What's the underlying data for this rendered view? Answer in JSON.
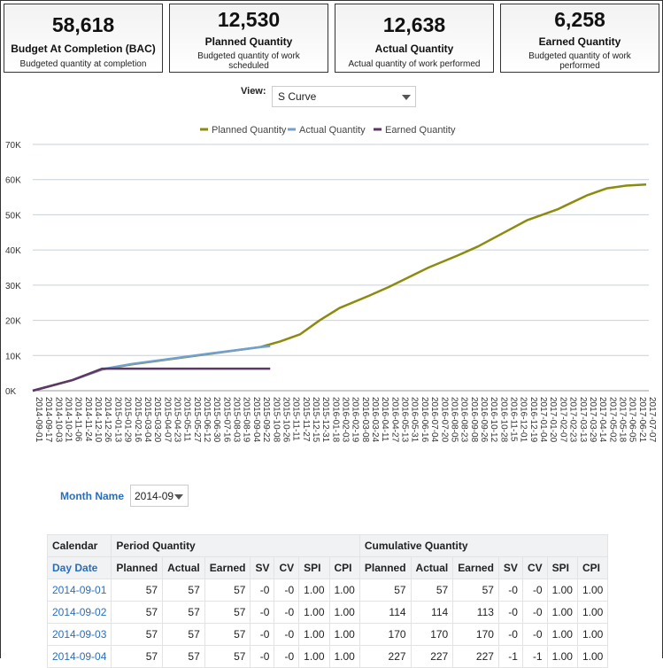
{
  "kpis": [
    {
      "value": "58,618",
      "label": "Budget At Completion (BAC)",
      "desc": "Budgeted quantity at completion"
    },
    {
      "value": "12,530",
      "label": "Planned Quantity",
      "desc": "Budgeted quantity of work scheduled"
    },
    {
      "value": "12,638",
      "label": "Actual Quantity",
      "desc": "Actual quantity of work performed"
    },
    {
      "value": "6,258",
      "label": "Earned Quantity",
      "desc": "Budgeted quantity of work performed"
    }
  ],
  "view": {
    "label": "View:",
    "value": "S Curve"
  },
  "chart_data": {
    "type": "line",
    "legend_position": "top",
    "grid": true,
    "ylim": [
      0,
      70000
    ],
    "y_ticks": [
      "0K",
      "10K",
      "20K",
      "30K",
      "40K",
      "50K",
      "60K",
      "70K"
    ],
    "x_labels": [
      "2014-09-01",
      "2014-09-17",
      "2014-10-03",
      "2014-10-21",
      "2014-11-06",
      "2014-11-24",
      "2014-12-10",
      "2014-12-26",
      "2015-01-13",
      "2015-01-29",
      "2015-02-16",
      "2015-03-04",
      "2015-03-20",
      "2015-04-07",
      "2015-04-23",
      "2015-05-11",
      "2015-05-27",
      "2015-06-12",
      "2015-06-30",
      "2015-07-16",
      "2015-08-03",
      "2015-08-19",
      "2015-09-04",
      "2015-09-22",
      "2015-10-08",
      "2015-10-26",
      "2015-11-11",
      "2015-11-27",
      "2015-12-15",
      "2015-12-31",
      "2016-01-18",
      "2016-02-03",
      "2016-02-19",
      "2016-03-08",
      "2016-03-24",
      "2016-04-11",
      "2016-04-27",
      "2016-05-13",
      "2016-05-31",
      "2016-06-16",
      "2016-07-04",
      "2016-07-20",
      "2016-08-05",
      "2016-08-23",
      "2016-09-08",
      "2016-09-26",
      "2016-10-12",
      "2016-10-28",
      "2016-11-15",
      "2016-12-01",
      "2016-12-19",
      "2017-01-04",
      "2017-01-20",
      "2017-02-07",
      "2017-02-23",
      "2017-03-13",
      "2017-03-29",
      "2017-04-14",
      "2017-05-02",
      "2017-05-18",
      "2017-06-05",
      "2017-06-21",
      "2017-07-07"
    ],
    "series": [
      {
        "name": "Planned Quantity",
        "color": "#8b8b10",
        "points": [
          [
            "2014-09-01",
            0
          ],
          [
            "2014-11-06",
            3000
          ],
          [
            "2014-12-26",
            6000
          ],
          [
            "2015-02-16",
            7500
          ],
          [
            "2015-04-23",
            9000
          ],
          [
            "2015-06-30",
            10500
          ],
          [
            "2015-09-22",
            12400
          ],
          [
            "2015-10-26",
            14000
          ],
          [
            "2015-11-27",
            16000
          ],
          [
            "2015-12-31",
            20000
          ],
          [
            "2016-02-03",
            23500
          ],
          [
            "2016-03-24",
            27000
          ],
          [
            "2016-04-27",
            29500
          ],
          [
            "2016-07-04",
            35000
          ],
          [
            "2016-08-23",
            38500
          ],
          [
            "2016-09-26",
            41000
          ],
          [
            "2016-11-15",
            45500
          ],
          [
            "2016-12-19",
            48500
          ],
          [
            "2017-02-07",
            51500
          ],
          [
            "2017-03-29",
            55500
          ],
          [
            "2017-05-02",
            57500
          ],
          [
            "2017-06-05",
            58300
          ],
          [
            "2017-07-07",
            58618
          ]
        ]
      },
      {
        "name": "Actual Quantity",
        "color": "#6fa0d0",
        "points": [
          [
            "2014-09-01",
            0
          ],
          [
            "2014-11-06",
            3000
          ],
          [
            "2014-12-26",
            6100
          ],
          [
            "2015-02-16",
            7600
          ],
          [
            "2015-04-23",
            9100
          ],
          [
            "2015-06-30",
            10600
          ],
          [
            "2015-09-22",
            12400
          ],
          [
            "2015-10-08",
            12638
          ]
        ]
      },
      {
        "name": "Earned Quantity",
        "color": "#5e3766",
        "points": [
          [
            "2014-09-01",
            0
          ],
          [
            "2014-11-06",
            3000
          ],
          [
            "2014-12-26",
            6258
          ],
          [
            "2015-10-08",
            6258
          ]
        ]
      }
    ]
  },
  "month": {
    "label": "Month Name",
    "value": "2014-09"
  },
  "table": {
    "group_headers": [
      "Calendar",
      "Period Quantity",
      "Cumulative Quantity"
    ],
    "columns": [
      "Day Date",
      "Planned",
      "Actual",
      "Earned",
      "SV",
      "CV",
      "SPI",
      "CPI",
      "Planned",
      "Actual",
      "Earned",
      "SV",
      "CV",
      "SPI",
      "CPI"
    ],
    "rows": [
      [
        "2014-09-01",
        "57",
        "57",
        "57",
        "-0",
        "-0",
        "1.00",
        "1.00",
        "57",
        "57",
        "57",
        "-0",
        "-0",
        "1.00",
        "1.00"
      ],
      [
        "2014-09-02",
        "57",
        "57",
        "57",
        "-0",
        "-0",
        "1.00",
        "1.00",
        "114",
        "114",
        "113",
        "-0",
        "-0",
        "1.00",
        "1.00"
      ],
      [
        "2014-09-03",
        "57",
        "57",
        "57",
        "-0",
        "-0",
        "1.00",
        "1.00",
        "170",
        "170",
        "170",
        "-0",
        "-0",
        "1.00",
        "1.00"
      ],
      [
        "2014-09-04",
        "57",
        "57",
        "57",
        "-0",
        "-0",
        "1.00",
        "1.00",
        "227",
        "227",
        "227",
        "-1",
        "-1",
        "1.00",
        "1.00"
      ]
    ]
  }
}
